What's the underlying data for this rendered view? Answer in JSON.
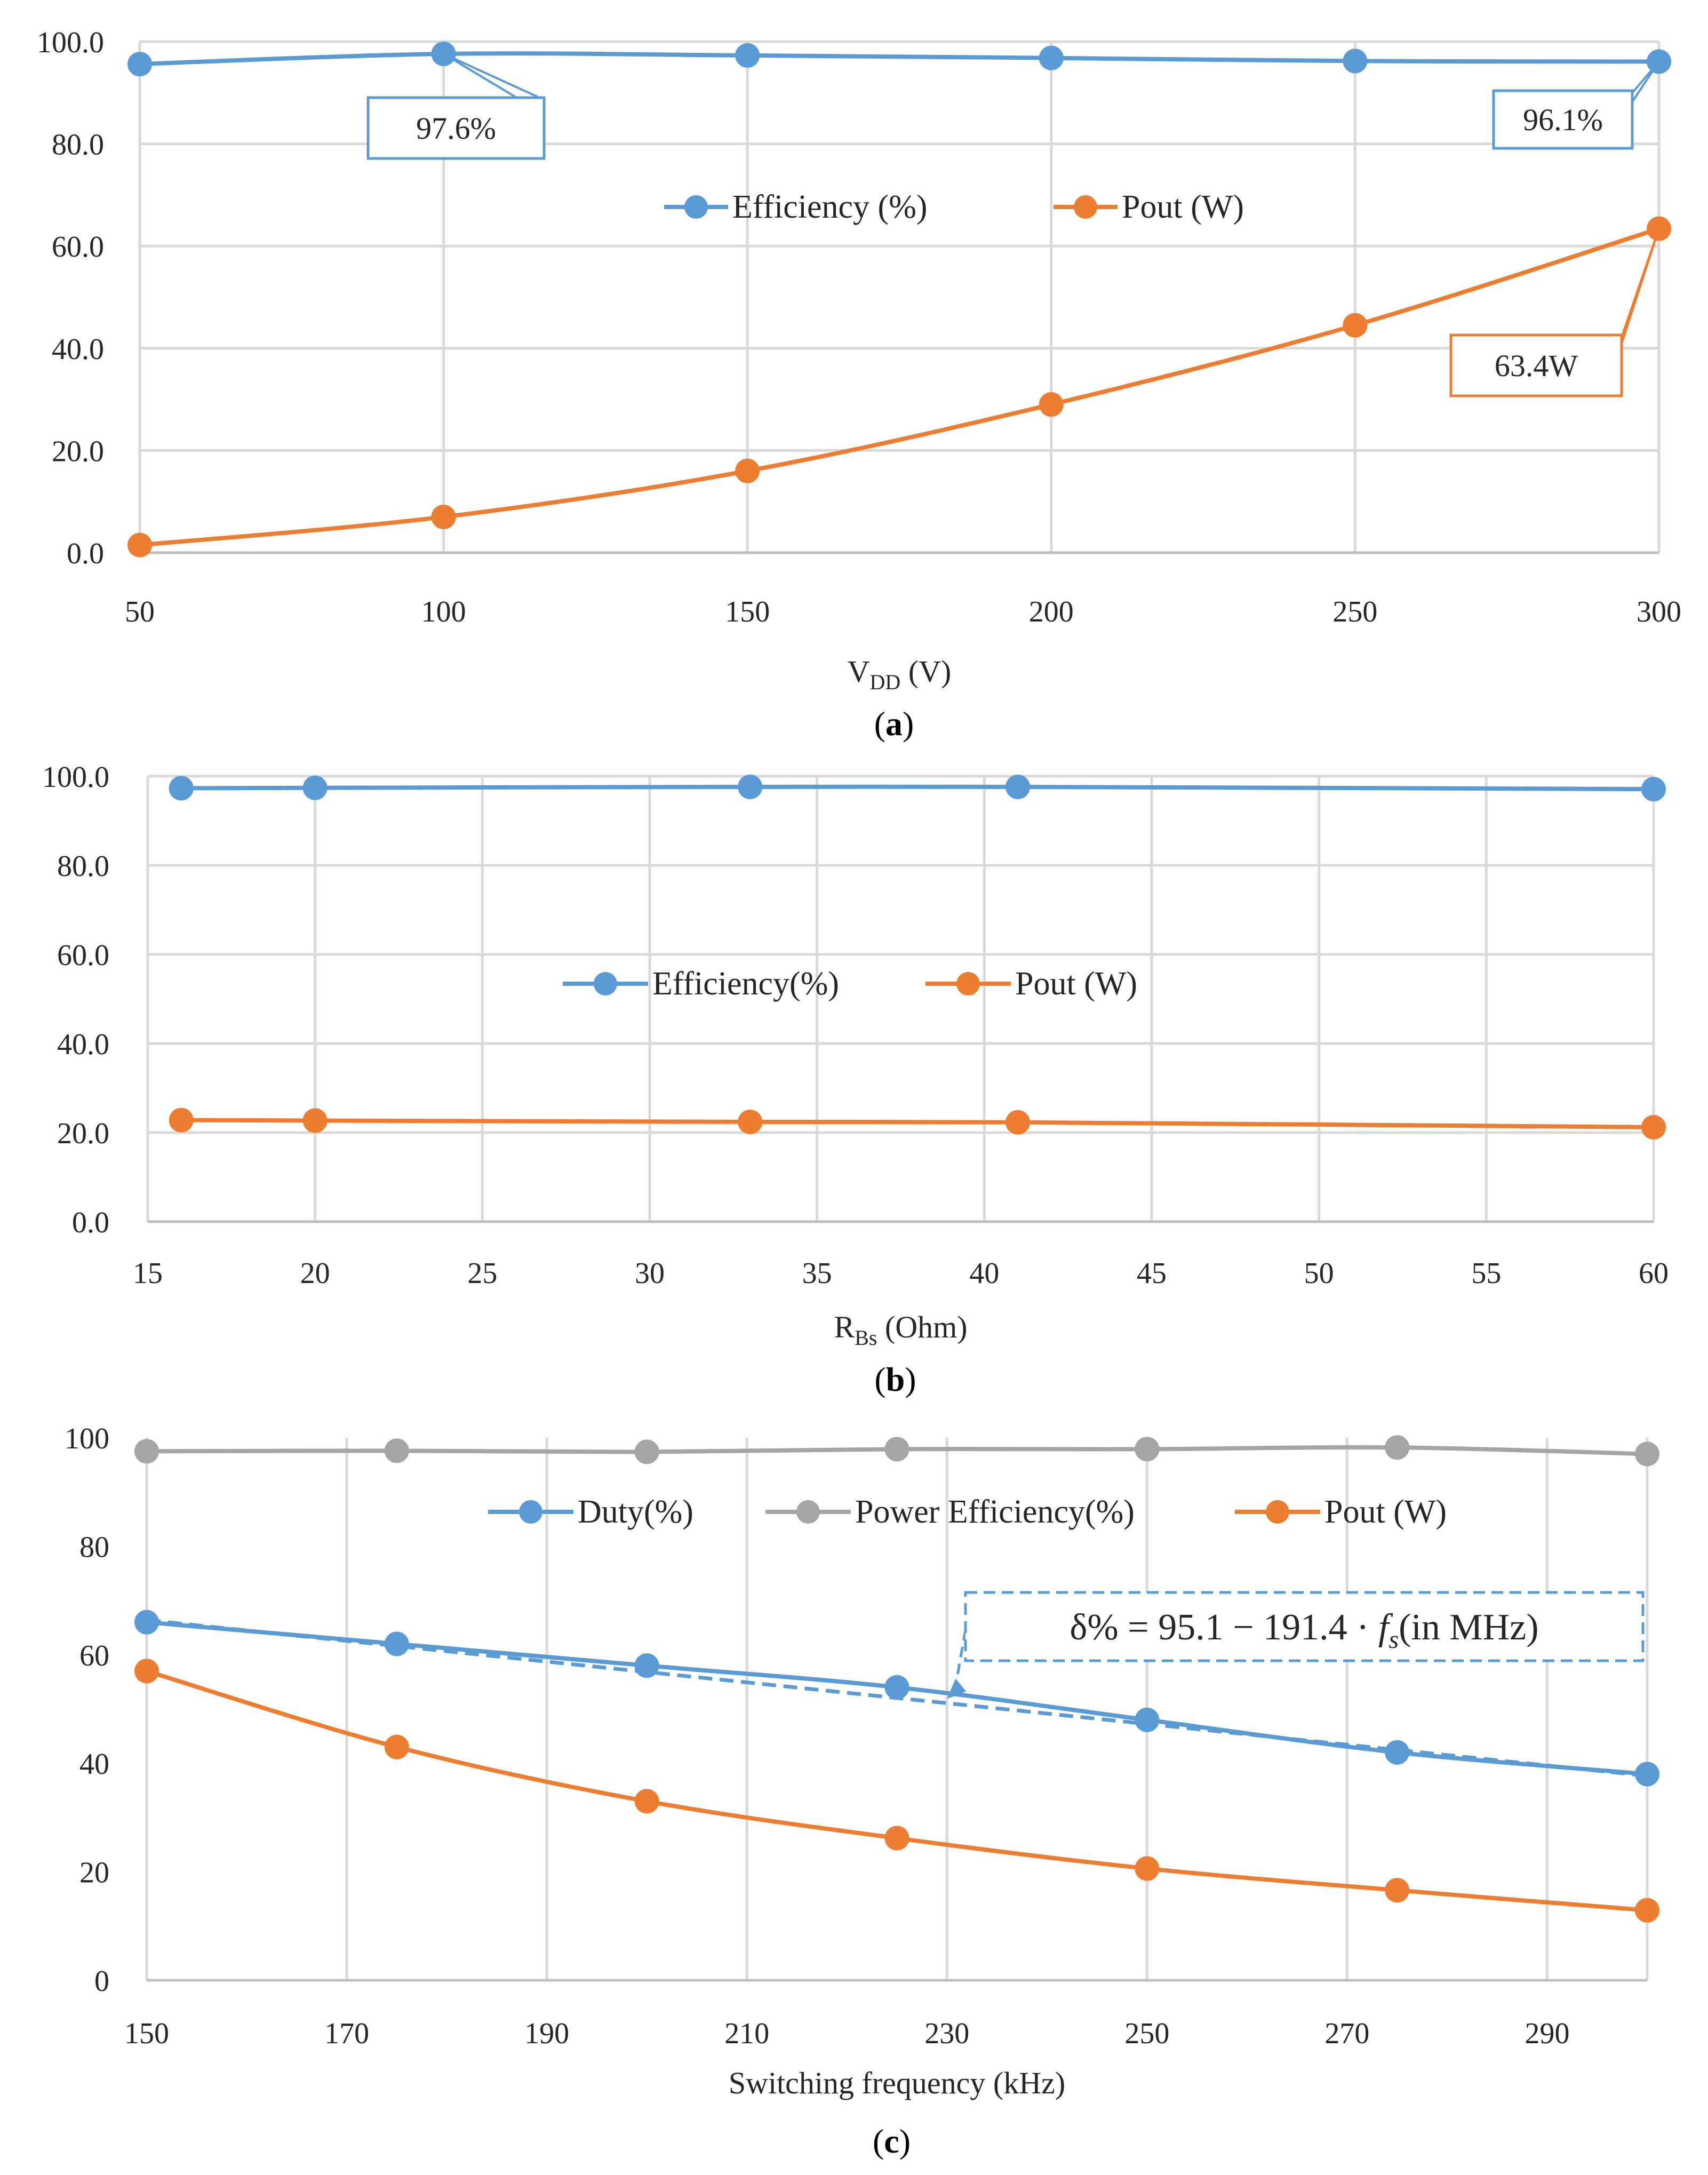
{
  "colors": {
    "blue": "#5b9bd5",
    "orange": "#ed7d31",
    "gray": "#a5a5a5",
    "grid": "#d9d9d9",
    "text": "#262626"
  },
  "chart_data": [
    {
      "id": "a",
      "type": "line",
      "caption_open": "(",
      "caption_letter": "a",
      "caption_close": ")",
      "xlabel_main": "V",
      "xlabel_sub": "DD",
      "xlabel_unit": " (V)",
      "ylabel": "",
      "xlim": [
        50,
        300
      ],
      "ylim": [
        0,
        100
      ],
      "xticks": [
        50,
        100,
        150,
        200,
        250,
        300
      ],
      "xtick_labels": [
        "50",
        "100",
        "150",
        "200",
        "250",
        "300"
      ],
      "yticks": [
        0,
        20,
        40,
        60,
        80,
        100
      ],
      "ytick_labels": [
        "0.0",
        "20.0",
        "40.0",
        "60.0",
        "80.0",
        "100.0"
      ],
      "grid": true,
      "legend_position": "center",
      "series": [
        {
          "name": "Efficiency (%)",
          "color": "#5b9bd5",
          "x": [
            50,
            100,
            150,
            200,
            250,
            300
          ],
          "y": [
            95.6,
            97.6,
            97.3,
            96.8,
            96.2,
            96.1
          ]
        },
        {
          "name": "Pout (W)",
          "color": "#ed7d31",
          "x": [
            50,
            100,
            150,
            200,
            250,
            300
          ],
          "y": [
            1.5,
            7.0,
            16.0,
            29.0,
            44.5,
            63.4
          ]
        }
      ],
      "annotations": [
        {
          "text": "97.6%",
          "series": 0,
          "point": 1,
          "color": "#5b9bd5"
        },
        {
          "text": "96.1%",
          "series": 0,
          "point": 5,
          "color": "#5b9bd5"
        },
        {
          "text": "63.4W",
          "series": 1,
          "point": 5,
          "color": "#ed7d31"
        }
      ]
    },
    {
      "id": "b",
      "type": "line",
      "caption_open": "(",
      "caption_letter": "b",
      "caption_close": ")",
      "xlabel_main": "R",
      "xlabel_sub": "Bs",
      "xlabel_unit": " (Ohm)",
      "ylabel": "",
      "xlim": [
        15,
        60
      ],
      "ylim": [
        0,
        100
      ],
      "xticks": [
        15,
        20,
        25,
        30,
        35,
        40,
        45,
        50,
        55,
        60
      ],
      "xtick_labels": [
        "15",
        "20",
        "25",
        "30",
        "35",
        "40",
        "45",
        "50",
        "55",
        "60"
      ],
      "yticks": [
        0,
        20,
        40,
        60,
        80,
        100
      ],
      "ytick_labels": [
        "0.0",
        "20.0",
        "40.0",
        "60.0",
        "80.0",
        "100.0"
      ],
      "grid": true,
      "legend_position": "center",
      "series": [
        {
          "name": "Efficiency(%)",
          "color": "#5b9bd5",
          "x": [
            16,
            20,
            33,
            41,
            60
          ],
          "y": [
            97.3,
            97.4,
            97.6,
            97.6,
            97.1
          ]
        },
        {
          "name": "Pout (W)",
          "color": "#ed7d31",
          "x": [
            16,
            20,
            33,
            41,
            60
          ],
          "y": [
            22.8,
            22.7,
            22.4,
            22.3,
            21.2
          ]
        }
      ]
    },
    {
      "id": "c",
      "type": "line",
      "caption_open": "(",
      "caption_letter": "c",
      "caption_close": ")",
      "xlabel": "Switching frequency (kHz)",
      "ylabel": "",
      "xlim": [
        150,
        300
      ],
      "ylim": [
        0,
        100
      ],
      "xticks": [
        150,
        170,
        190,
        210,
        230,
        250,
        270,
        290
      ],
      "xtick_labels": [
        "150",
        "170",
        "190",
        "210",
        "230",
        "250",
        "270",
        "290"
      ],
      "yticks": [
        0,
        20,
        40,
        60,
        80,
        100
      ],
      "ytick_labels": [
        "0",
        "20",
        "40",
        "60",
        "80",
        "100"
      ],
      "grid": "vertical-only",
      "legend_position": "top",
      "series": [
        {
          "name": "Duty(%)",
          "color": "#5b9bd5",
          "x": [
            150,
            175,
            200,
            225,
            250,
            275,
            300
          ],
          "y": [
            66,
            62,
            58,
            54,
            48,
            42,
            38
          ]
        },
        {
          "name": "Power Efficiency(%)",
          "color": "#a5a5a5",
          "x": [
            150,
            175,
            200,
            225,
            250,
            275,
            300
          ],
          "y": [
            97.5,
            97.6,
            97.4,
            97.9,
            97.9,
            98.2,
            97.0
          ]
        },
        {
          "name": "Pout (W)",
          "color": "#ed7d31",
          "x": [
            150,
            175,
            200,
            225,
            250,
            275,
            300
          ],
          "y": [
            57,
            43,
            33,
            26.2,
            20.6,
            16.6,
            12.9
          ]
        }
      ],
      "trendline": {
        "intercept": 95.1,
        "slope_per_mhz": -191.4,
        "x_range": [
          150,
          300
        ],
        "color": "#5b9bd5",
        "style": "dashed"
      },
      "equation_annotation": {
        "lhs": "δ% = 95.1 − 191.4 · ",
        "f": "f",
        "f_sub": "s",
        "rhs": "(in MHz)"
      }
    }
  ]
}
